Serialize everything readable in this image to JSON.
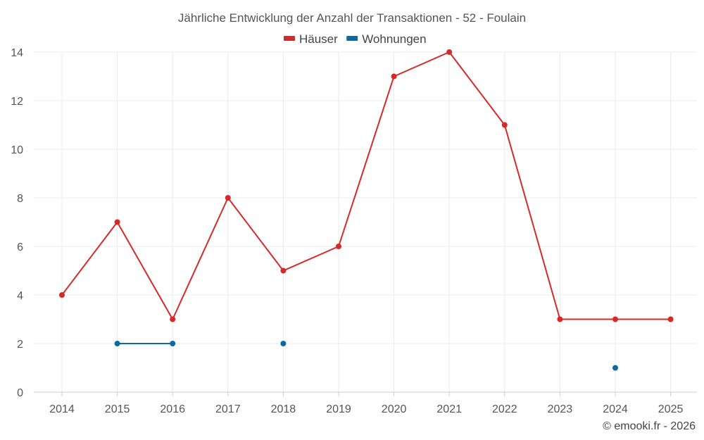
{
  "chart_data": {
    "type": "line",
    "title": "Jährliche Entwicklung der Anzahl der Transaktionen - 52 - Foulain",
    "xlabel": "",
    "ylabel": "",
    "x": [
      "2014",
      "2015",
      "2016",
      "2017",
      "2018",
      "2019",
      "2020",
      "2021",
      "2022",
      "2023",
      "2024",
      "2025"
    ],
    "yticks": [
      "0",
      "2",
      "4",
      "6",
      "8",
      "10",
      "12",
      "14"
    ],
    "ylim": [
      0,
      14
    ],
    "grid": true,
    "legend_position": "top-center",
    "series": [
      {
        "name": "Häuser",
        "color": "#d42a2a",
        "values": [
          4,
          7,
          3,
          8,
          5,
          6,
          13,
          14,
          11,
          3,
          3,
          3
        ]
      },
      {
        "name": "Wohnungen",
        "color": "#0a6aa1",
        "values": [
          null,
          2,
          2,
          null,
          2,
          null,
          null,
          null,
          null,
          null,
          1,
          null
        ]
      }
    ]
  },
  "credit": "© emooki.fr - 2026"
}
